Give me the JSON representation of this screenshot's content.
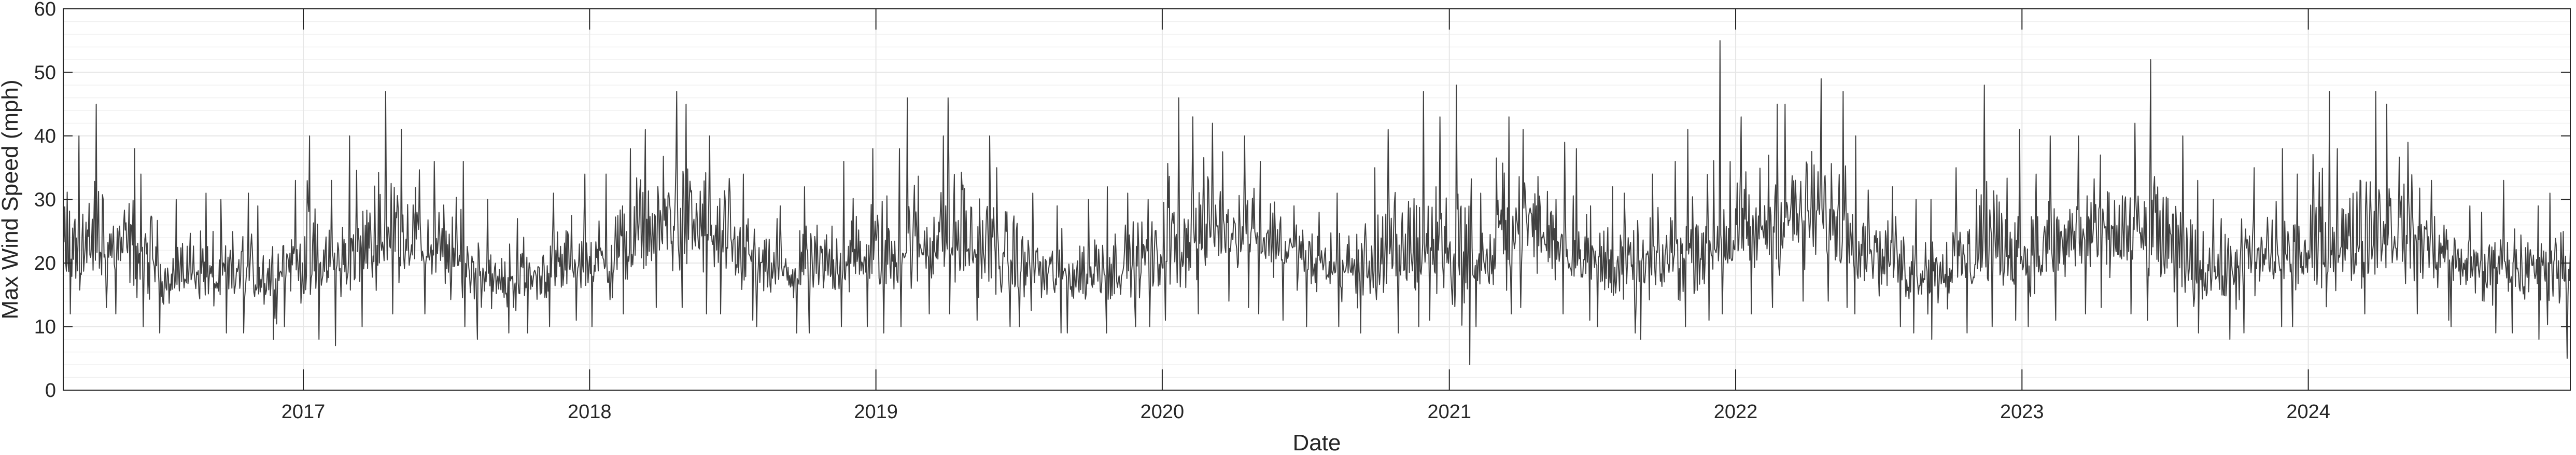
{
  "chart_data": {
    "type": "line",
    "title": "",
    "xlabel": "Date",
    "ylabel": "Max Wind Speed (mph)",
    "xlim": [
      "2016-03-01",
      "2024-11-30"
    ],
    "ylim": [
      0,
      60
    ],
    "x_ticks": [
      "2017",
      "2018",
      "2019",
      "2020",
      "2021",
      "2022",
      "2023",
      "2024"
    ],
    "y_ticks": [
      "0",
      "10",
      "20",
      "30",
      "40",
      "50",
      "60"
    ],
    "grid": true,
    "minor_grid": true,
    "colors": {
      "line": "#404040",
      "grid": "#e6e6e6",
      "axes": "#262626"
    },
    "series": [
      {
        "resolution": "monthly",
        "x": [
          "2016-03",
          "2016-04",
          "2016-05",
          "2016-06",
          "2016-07",
          "2016-08",
          "2016-09",
          "2016-10",
          "2016-11",
          "2016-12",
          "2017-01",
          "2017-02",
          "2017-03",
          "2017-04",
          "2017-05",
          "2017-06",
          "2017-07",
          "2017-08",
          "2017-09",
          "2017-10",
          "2017-11",
          "2017-12",
          "2018-01",
          "2018-02",
          "2018-03",
          "2018-04",
          "2018-05",
          "2018-06",
          "2018-07",
          "2018-08",
          "2018-09",
          "2018-10",
          "2018-11",
          "2018-12",
          "2019-01",
          "2019-02",
          "2019-03",
          "2019-04",
          "2019-05",
          "2019-06",
          "2019-07",
          "2019-08",
          "2019-09",
          "2019-10",
          "2019-11",
          "2019-12",
          "2020-01",
          "2020-02",
          "2020-03",
          "2020-04",
          "2020-05",
          "2020-06",
          "2020-07",
          "2020-08",
          "2020-09",
          "2020-10",
          "2020-11",
          "2020-12",
          "2021-01",
          "2021-02",
          "2021-03",
          "2021-04",
          "2021-05",
          "2021-06",
          "2021-07",
          "2021-08",
          "2021-09",
          "2021-10",
          "2021-11",
          "2021-12",
          "2022-01",
          "2022-02",
          "2022-03",
          "2022-04",
          "2022-05",
          "2022-06",
          "2022-07",
          "2022-08",
          "2022-09",
          "2022-10",
          "2022-11",
          "2022-12",
          "2023-01",
          "2023-02",
          "2023-03",
          "2023-04",
          "2023-05",
          "2023-06",
          "2023-07",
          "2023-08",
          "2023-09",
          "2023-10",
          "2023-11",
          "2023-12",
          "2024-01",
          "2024-02",
          "2024-03",
          "2024-04",
          "2024-05",
          "2024-06",
          "2024-07",
          "2024-08",
          "2024-09",
          "2024-10",
          "2024-11"
        ],
        "max": [
          40,
          45,
          38,
          34,
          30,
          31,
          30,
          31,
          29,
          33,
          40,
          33,
          40,
          47,
          41,
          36,
          36,
          30,
          23,
          27,
          31,
          34,
          34,
          38,
          41,
          47,
          45,
          40,
          34,
          27,
          29,
          32,
          36,
          38,
          38,
          46,
          40,
          46,
          40,
          35,
          31,
          29,
          30,
          32,
          31,
          30,
          46,
          43,
          42,
          40,
          36,
          29,
          28,
          31,
          35,
          41,
          47,
          43,
          48,
          31,
          43,
          41,
          39,
          38,
          32,
          31,
          34,
          36,
          41,
          55,
          43,
          45,
          45,
          49,
          47,
          40,
          32,
          30,
          30,
          35,
          48,
          41,
          34,
          40,
          40,
          37,
          42,
          52,
          40,
          33,
          30,
          35,
          38,
          34,
          47,
          38,
          47,
          45,
          39,
          33,
          29,
          28,
          33,
          29,
          31
        ],
        "avg": [
          21,
          22,
          22,
          20,
          18,
          19,
          17,
          18,
          18,
          20,
          19,
          20,
          22,
          24,
          24,
          22,
          20,
          19,
          17,
          18,
          19,
          20,
          20,
          22,
          25,
          26,
          25,
          23,
          21,
          19,
          18,
          19,
          20,
          21,
          21,
          22,
          23,
          23,
          22,
          20,
          19,
          18,
          18,
          19,
          20,
          21,
          22,
          24,
          26,
          26,
          24,
          22,
          20,
          19,
          19,
          20,
          21,
          22,
          20,
          20,
          25,
          26,
          24,
          22,
          20,
          19,
          19,
          21,
          22,
          23,
          24,
          26,
          27,
          27,
          26,
          23,
          21,
          19,
          19,
          20,
          22,
          22,
          21,
          22,
          24,
          24,
          24,
          23,
          21,
          19,
          19,
          20,
          21,
          21,
          21,
          23,
          24,
          25,
          24,
          22,
          20,
          19,
          19,
          19,
          20
        ],
        "min": [
          12,
          13,
          12,
          10,
          9,
          10,
          9,
          9,
          8,
          10,
          8,
          7,
          10,
          12,
          13,
          12,
          10,
          8,
          9,
          9,
          10,
          11,
          10,
          12,
          13,
          13,
          12,
          12,
          11,
          10,
          9,
          9,
          10,
          10,
          9,
          10,
          12,
          12,
          11,
          10,
          10,
          9,
          9,
          9,
          10,
          10,
          11,
          12,
          14,
          13,
          12,
          11,
          10,
          10,
          9,
          9,
          10,
          11,
          4,
          10,
          12,
          13,
          12,
          11,
          10,
          9,
          8,
          10,
          11,
          12,
          12,
          13,
          14,
          14,
          13,
          12,
          10,
          9,
          8,
          9,
          10,
          11,
          10,
          11,
          12,
          13,
          12,
          11,
          10,
          9,
          8,
          9,
          10,
          10,
          10,
          11,
          12,
          13,
          12,
          11,
          10,
          9,
          9,
          8,
          5
        ]
      }
    ]
  }
}
